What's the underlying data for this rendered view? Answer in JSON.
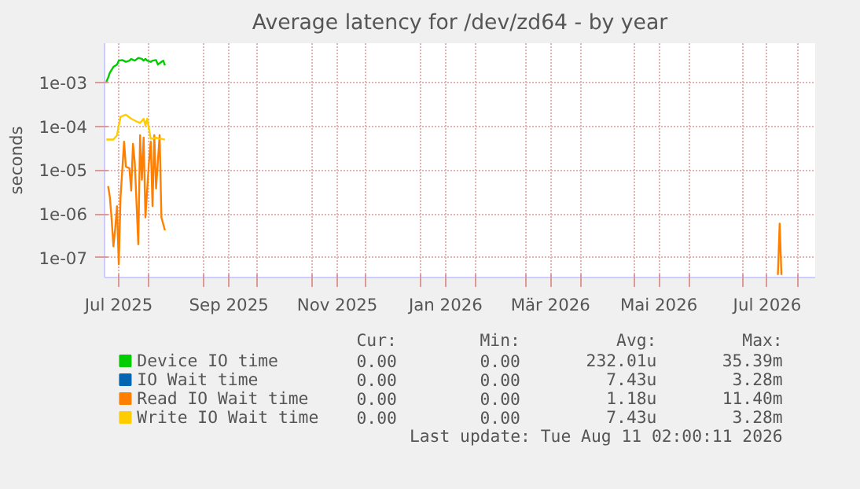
{
  "chart_data": {
    "type": "line",
    "title": "Average latency for /dev/zd64 - by year",
    "ylabel": "seconds",
    "log": "y",
    "grid": true,
    "legend": "bottom",
    "line_style": "solid",
    "marker": "none",
    "xlim": [
      "2025-07-07",
      "2026-08-11"
    ],
    "xticks": [
      {
        "value": "2025-07-15",
        "label": "Jul 2025"
      },
      {
        "value": "2025-08-01",
        "label": null
      },
      {
        "value": "2025-09-01",
        "label": null
      },
      {
        "value": "2025-09-15",
        "label": "Sep 2025"
      },
      {
        "value": "2025-10-01",
        "label": null
      },
      {
        "value": "2025-11-01",
        "label": null
      },
      {
        "value": "2025-11-15",
        "label": "Nov 2025"
      },
      {
        "value": "2025-12-01",
        "label": null
      },
      {
        "value": "2026-01-01",
        "label": null
      },
      {
        "value": "2026-01-15",
        "label": "Jan 2026"
      },
      {
        "value": "2026-02-01",
        "label": null
      },
      {
        "value": "2026-03-01",
        "label": null
      },
      {
        "value": "2026-03-15",
        "label": "Mär 2026"
      },
      {
        "value": "2026-04-01",
        "label": null
      },
      {
        "value": "2026-05-01",
        "label": null
      },
      {
        "value": "2026-05-15",
        "label": "Mai 2026"
      },
      {
        "value": "2026-06-01",
        "label": null
      },
      {
        "value": "2026-07-01",
        "label": null
      },
      {
        "value": "2026-07-15",
        "label": "Jul 2026"
      },
      {
        "value": "2026-08-01",
        "label": null
      }
    ],
    "ylim": [
      3.5e-08,
      0.008
    ],
    "yticks": [
      {
        "value": 1e-07,
        "label": "1e-07"
      },
      {
        "value": 1e-06,
        "label": "1e-06"
      },
      {
        "value": 1e-05,
        "label": "1e-05"
      },
      {
        "value": 0.0001,
        "label": "1e-04"
      },
      {
        "value": 0.001,
        "label": "1e-03"
      }
    ],
    "series": [
      {
        "name": "Device IO time",
        "color": "#00cc00",
        "x": [
          "2025-07-08",
          "2025-07-09",
          "2025-07-10",
          "2025-07-12",
          "2025-07-14",
          "2025-07-15",
          "2025-07-17",
          "2025-07-19",
          "2025-07-21",
          "2025-07-22",
          "2025-07-24",
          "2025-07-26",
          "2025-07-28",
          "2025-07-29",
          "2025-07-30",
          "2025-07-31",
          "2025-08-02",
          "2025-08-03",
          "2025-08-05",
          "2025-08-06",
          "2025-08-08",
          "2025-08-09",
          "2025-08-10"
        ],
        "values": [
          0.00105,
          0.0013,
          0.0017,
          0.0023,
          0.0026,
          0.0032,
          0.0033,
          0.003,
          0.0032,
          0.0035,
          0.0032,
          0.0037,
          0.0035,
          0.0032,
          0.0035,
          0.0032,
          0.003,
          0.0032,
          0.0033,
          0.0026,
          0.003,
          0.0032,
          0.0025
        ]
      },
      {
        "name": "IO Wait time",
        "color": "#0066b3"
      },
      {
        "name": "Read IO Wait time",
        "color": "#ff8000",
        "x": [
          "2025-07-09",
          "2025-07-10",
          "2025-07-11",
          "2025-07-12",
          "2025-07-13",
          "2025-07-14",
          "2025-07-15",
          "2025-07-16",
          "2025-07-18",
          "2025-07-19",
          "2025-07-21",
          "2025-07-22",
          "2025-07-23",
          "2025-07-24",
          "2025-07-26",
          "2025-07-27",
          "2025-07-28",
          "2025-07-29",
          "2025-07-30",
          "2025-08-01",
          "2025-08-02",
          "2025-08-03",
          "2025-08-04",
          "2025-08-05",
          "2025-08-07",
          "2025-08-08",
          "2025-08-10",
          "2025-08-11",
          "2026-07-21",
          "2026-07-22",
          "2026-07-23"
        ],
        "values": [
          4.3e-06,
          2.4e-06,
          7.4e-07,
          1.8e-07,
          4.7e-07,
          1.5e-06,
          7e-08,
          2.4e-06,
          4.5e-05,
          1.2e-05,
          1.1e-05,
          3.4e-06,
          4e-05,
          1.5e-05,
          2e-07,
          6.3e-05,
          6e-06,
          5.6e-05,
          8.3e-07,
          1.5e-05,
          4.5e-05,
          1.5e-06,
          6.3e-05,
          3.8e-06,
          6.3e-05,
          8.3e-07,
          4.2e-07,
          null,
          4e-08,
          6e-07,
          4e-08
        ]
      },
      {
        "name": "Write IO Wait time",
        "color": "#ffcc00",
        "x": [
          "2025-07-08",
          "2025-07-12",
          "2025-07-14",
          "2025-07-16",
          "2025-07-19",
          "2025-07-22",
          "2025-07-25",
          "2025-07-27",
          "2025-07-29",
          "2025-07-30",
          "2025-07-31",
          "2025-08-02",
          "2025-08-05",
          "2025-08-10"
        ],
        "values": [
          5e-05,
          5e-05,
          6.3e-05,
          0.000166,
          0.000186,
          0.00015,
          0.00013,
          0.00012,
          0.00015,
          0.000105,
          0.00015,
          5.2e-05,
          5.5e-05,
          5e-05
        ]
      }
    ],
    "annotations": [
      "Cur:",
      "Min:",
      "Avg:",
      "Max:",
      "0.00",
      "0.00",
      "232.01u",
      "35.39m",
      "0.00",
      "0.00",
      "7.43u",
      "3.28m",
      "0.00",
      "0.00",
      "1.18u",
      "11.40m",
      "0.00",
      "0.00",
      "7.43u",
      "3.28m",
      "Last update: Tue Aug 11 02:00:11 2026"
    ]
  }
}
